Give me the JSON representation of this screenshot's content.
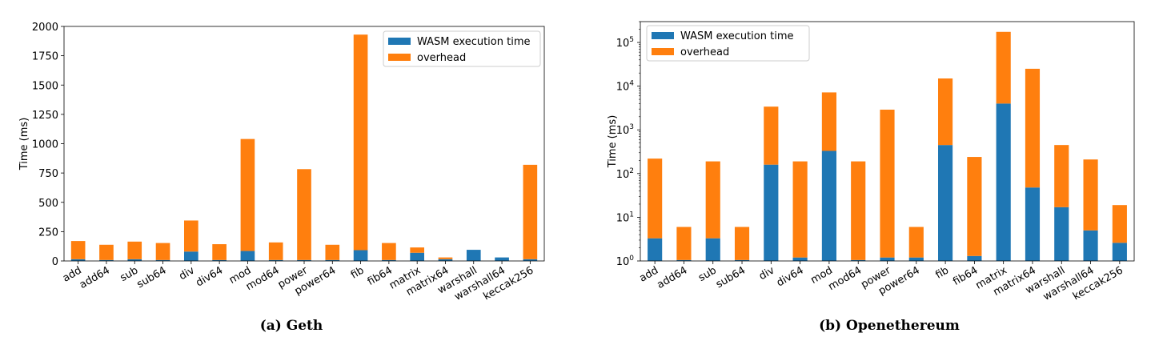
{
  "colors": {
    "wasm": "#1f77b4",
    "overhead": "#ff7f0e"
  },
  "chart_data": [
    {
      "type": "bar",
      "stacked": true,
      "caption": "(a) Geth",
      "ylabel": "Time (ms)",
      "yscale": "linear",
      "ylim": [
        0,
        2000
      ],
      "yticks": [
        "0",
        "250",
        "500",
        "750",
        "1000",
        "1250",
        "1500",
        "1750",
        "2000"
      ],
      "legend": {
        "position": "top-right"
      },
      "categories": [
        "add",
        "add64",
        "sub",
        "sub64",
        "div",
        "div64",
        "mod",
        "mod64",
        "power",
        "power64",
        "fib",
        "fib64",
        "matrix",
        "matrix64",
        "warshall",
        "warshall64",
        "keccak256"
      ],
      "series": [
        {
          "name": "WASM execution time",
          "values": [
            15,
            8,
            15,
            8,
            80,
            8,
            85,
            8,
            8,
            8,
            92,
            8,
            70,
            15,
            95,
            30,
            15
          ]
        },
        {
          "name": "overhead",
          "values": [
            155,
            130,
            150,
            145,
            265,
            135,
            955,
            150,
            775,
            130,
            1838,
            145,
            45,
            15,
            0,
            0,
            805
          ]
        }
      ]
    },
    {
      "type": "bar",
      "stacked": true,
      "caption": "(b) Openethereum",
      "ylabel": "Time (ms)",
      "yscale": "log",
      "ylim": [
        1,
        300000
      ],
      "yticks": [
        {
          "value": 1,
          "base": "10",
          "exp": "0"
        },
        {
          "value": 10,
          "base": "10",
          "exp": "1"
        },
        {
          "value": 100,
          "base": "10",
          "exp": "2"
        },
        {
          "value": 1000,
          "base": "10",
          "exp": "3"
        },
        {
          "value": 10000,
          "base": "10",
          "exp": "4"
        },
        {
          "value": 100000,
          "base": "10",
          "exp": "5"
        }
      ],
      "legend": {
        "position": "top-left"
      },
      "categories": [
        "add",
        "add64",
        "sub",
        "sub64",
        "div",
        "div64",
        "mod",
        "mod64",
        "power",
        "power64",
        "fib",
        "fib64",
        "matrix",
        "matrix64",
        "warshall",
        "warshall64",
        "keccak256"
      ],
      "series": [
        {
          "name": "WASM execution time",
          "values": [
            3.3,
            1.05,
            3.3,
            1.05,
            160,
            1.2,
            330,
            1.05,
            1.2,
            1.2,
            450,
            1.3,
            4000,
            48,
            17,
            5,
            2.6
          ]
        },
        {
          "name": "overhead",
          "values": [
            220,
            6,
            190,
            6,
            3400,
            190,
            7200,
            190,
            2900,
            6,
            15000,
            240,
            175000,
            25000,
            450,
            210,
            19
          ]
        }
      ]
    }
  ]
}
